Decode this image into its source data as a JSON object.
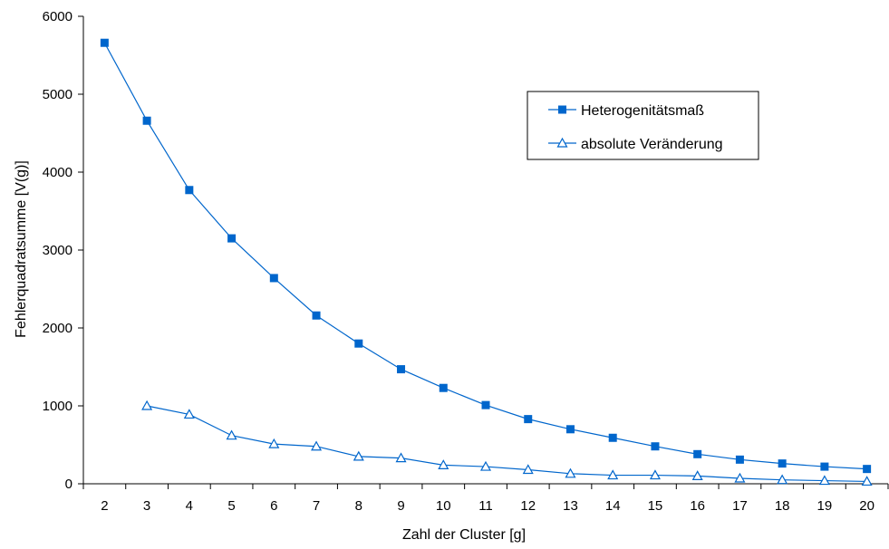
{
  "chart_data": {
    "type": "line",
    "title": "",
    "xlabel": "Zahl der Cluster [g]",
    "ylabel": "Fehlerquadratsumme [V(g)]",
    "categories": [
      "2",
      "3",
      "4",
      "5",
      "6",
      "7",
      "8",
      "9",
      "10",
      "11",
      "12",
      "13",
      "14",
      "15",
      "16",
      "17",
      "18",
      "19",
      "20"
    ],
    "ylim": [
      0,
      6000
    ],
    "yticks": [
      0,
      1000,
      2000,
      3000,
      4000,
      5000,
      6000
    ],
    "grid": false,
    "legend_position": "upper-right",
    "series": [
      {
        "name": "Heterogenitätsmaß",
        "marker": "square",
        "color": "#0066cc",
        "values": [
          5660,
          4660,
          3770,
          3150,
          2640,
          2160,
          1800,
          1470,
          1230,
          1010,
          830,
          700,
          590,
          480,
          380,
          310,
          260,
          220,
          190
        ]
      },
      {
        "name": "absolute Veränderung",
        "marker": "triangle",
        "color": "#0066cc",
        "values": [
          null,
          1000,
          890,
          620,
          510,
          480,
          350,
          330,
          240,
          220,
          180,
          130,
          110,
          110,
          100,
          70,
          50,
          40,
          30
        ]
      }
    ]
  }
}
